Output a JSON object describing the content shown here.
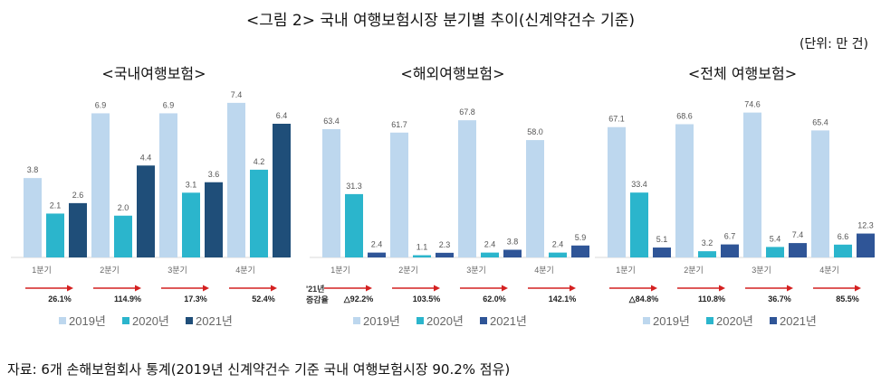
{
  "title": "<그림 2> 국내 여행보험시장 분기별 추이(신계약건수 기준)",
  "unit": "(단위: 만 건)",
  "source": "자료: 6개 손해보험회사 통계(2019년 신계약건수 기준 국내 여행보험시장 90.2% 점유)",
  "colors": {
    "y2019": "#bdd7ee",
    "y2020": "#2bb5cc",
    "y2021_domestic": "#1f4e79",
    "y2021": "#2f5597",
    "arrow": "#d42020"
  },
  "chart_data": [
    {
      "type": "bar",
      "title": "<국내여행보험>",
      "categories": [
        "1분기",
        "2분기",
        "3분기",
        "4분기"
      ],
      "series": [
        {
          "name": "2019년",
          "values": [
            3.8,
            6.9,
            6.9,
            7.4
          ]
        },
        {
          "name": "2020년",
          "values": [
            2.1,
            2.0,
            3.1,
            4.2
          ]
        },
        {
          "name": "2021년",
          "values": [
            2.6,
            4.4,
            3.6,
            6.4
          ]
        }
      ],
      "growth": [
        "26.1%",
        "114.9%",
        "17.3%",
        "52.4%"
      ],
      "growth_label": "",
      "ylim": [
        0,
        8
      ]
    },
    {
      "type": "bar",
      "title": "<해외여행보험>",
      "categories": [
        "1분기",
        "2분기",
        "3분기",
        "4분기"
      ],
      "series": [
        {
          "name": "2019년",
          "values": [
            63.4,
            61.7,
            67.8,
            58.0
          ]
        },
        {
          "name": "2020년",
          "values": [
            31.3,
            1.1,
            2.4,
            2.4
          ]
        },
        {
          "name": "2021년",
          "values": [
            2.4,
            2.3,
            3.8,
            5.9
          ]
        }
      ],
      "growth": [
        "△92.2%",
        "103.5%",
        "62.0%",
        "142.1%"
      ],
      "growth_label": "'21년 증감율",
      "ylim": [
        0,
        75
      ]
    },
    {
      "type": "bar",
      "title": "<전체 여행보험>",
      "categories": [
        "1분기",
        "2분기",
        "3분기",
        "4분기"
      ],
      "series": [
        {
          "name": "2019년",
          "values": [
            67.1,
            68.6,
            74.6,
            65.4
          ]
        },
        {
          "name": "2020년",
          "values": [
            33.4,
            3.2,
            5.4,
            6.6
          ]
        },
        {
          "name": "2021년",
          "values": [
            5.1,
            6.7,
            7.4,
            12.3
          ]
        }
      ],
      "growth": [
        "△84.8%",
        "110.8%",
        "36.7%",
        "85.5%"
      ],
      "growth_label": "",
      "ylim": [
        0,
        80
      ]
    }
  ]
}
